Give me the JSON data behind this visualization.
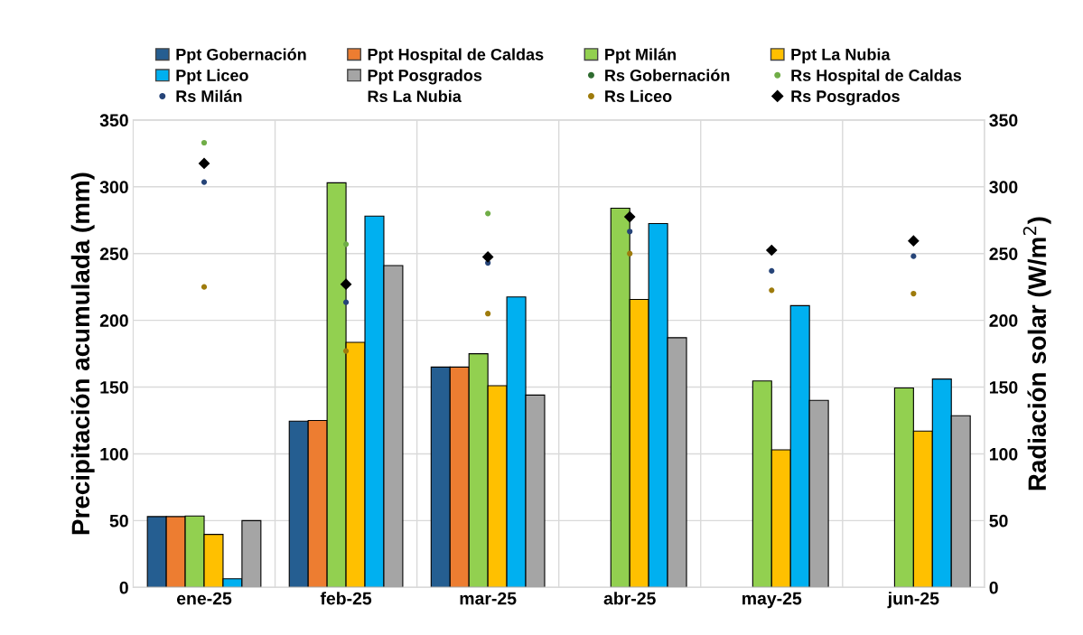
{
  "chart_data": {
    "type": "bar",
    "ylabel": "Precipitación acumulada (mm)",
    "y2label": "Radiación solar (W/m$^{2}$)",
    "categories": [
      "ene-25",
      "feb-25",
      "mar-25",
      "abr-25",
      "may-25",
      "jun-25"
    ],
    "ylim": [
      0,
      350
    ],
    "yticks": [
      0,
      50,
      100,
      150,
      200,
      250,
      300,
      350
    ],
    "y2lim": [
      0,
      350
    ],
    "y2ticks": [
      0,
      50,
      100,
      150,
      200,
      250,
      300,
      350
    ],
    "grid": true,
    "legend": "top",
    "series": [
      {
        "name": "Ppt Gobernación",
        "color": "#255e91",
        "values": [
          53,
          124.5,
          165,
          null,
          null,
          null
        ]
      },
      {
        "name": "Ppt Hospital de Caldas",
        "color": "#ed7d31",
        "values": [
          53,
          125,
          165,
          null,
          null,
          null
        ]
      },
      {
        "name": "Ppt Milán",
        "color": "#92d050",
        "values": [
          53.5,
          303,
          175,
          284,
          154.6,
          149.3
        ]
      },
      {
        "name": "Ppt La Nubia",
        "color": "#ffc000",
        "values": [
          39.7,
          183.5,
          151,
          215.6,
          103,
          117
        ]
      },
      {
        "name": "Ppt Liceo",
        "color": "#00b0f0",
        "values": [
          6.4,
          278,
          217.5,
          272.5,
          211,
          156
        ]
      },
      {
        "name": "Ppt Posgrados",
        "color": "#a5a5a5",
        "values": [
          50,
          241,
          144,
          187,
          140,
          128.5
        ]
      },
      {
        "name": "Rs Gobernación",
        "type": "scatter",
        "axis": "y2",
        "marker": "circle",
        "color": "#2e6b30",
        "values": [
          null,
          null,
          null,
          null,
          null,
          null
        ]
      },
      {
        "name": "Rs Hospital de Caldas",
        "type": "scatter",
        "axis": "y2",
        "marker": "circle",
        "color": "#70ad47",
        "values": [
          333,
          257,
          280,
          null,
          null,
          null
        ]
      },
      {
        "name": "Rs Milán",
        "type": "scatter",
        "axis": "y2",
        "marker": "circle",
        "color": "#264478",
        "values": [
          303.5,
          213.5,
          243,
          266.5,
          237,
          248
        ]
      },
      {
        "name": "Rs La Nubia",
        "type": "scatter",
        "axis": "y2",
        "marker": "none",
        "values": [
          null,
          null,
          null,
          null,
          null,
          null
        ]
      },
      {
        "name": "Rs Liceo",
        "type": "scatter",
        "axis": "y2",
        "marker": "circle",
        "color": "#9e7b0c",
        "values": [
          225,
          177,
          205,
          250,
          222.5,
          220
        ]
      },
      {
        "name": "Rs Posgrados",
        "type": "scatter",
        "axis": "y2",
        "marker": "diamond",
        "color": "#000000",
        "values": [
          317.5,
          227,
          247.5,
          277.5,
          252.5,
          259.5
        ]
      }
    ]
  }
}
